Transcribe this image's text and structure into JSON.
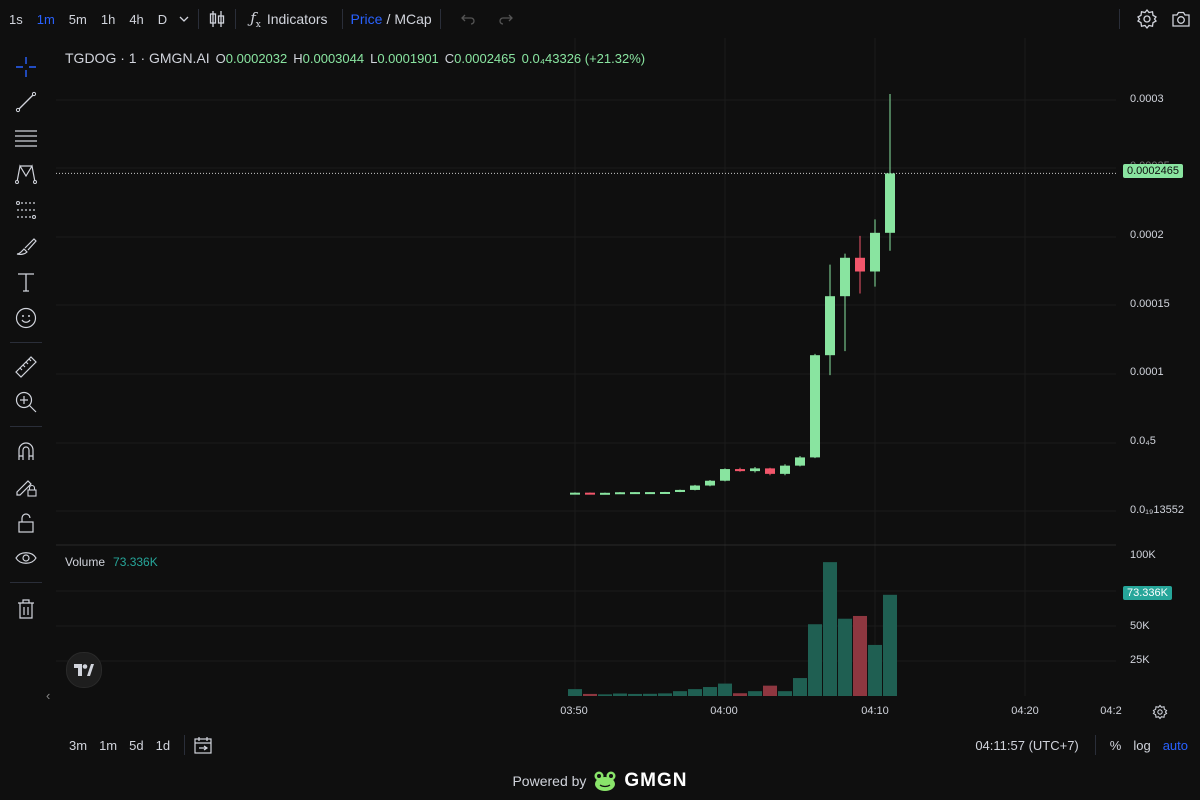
{
  "toolbar": {
    "timeframes": [
      "1s",
      "1m",
      "5m",
      "1h",
      "4h",
      "D"
    ],
    "active_timeframe": "1m",
    "indicators_label": "Indicators",
    "price_label": "Price",
    "slash": "/",
    "mcap_label": "MCap"
  },
  "legend": {
    "symbol": "TGDOG · 1 · GMGN.AI",
    "open_key": "O",
    "open": "0.0002032",
    "high_key": "H",
    "high": "0.0003044",
    "low_key": "L",
    "low": "0.0001901",
    "close_key": "C",
    "close": "0.0002465",
    "change": "0.0₄43326 (+21.32%)"
  },
  "volume_legend": {
    "label": "Volume",
    "value": "73.336K"
  },
  "price_axis": {
    "ticks": [
      "0.0003",
      "0.0002",
      "0.00015",
      "0.0001",
      "0.0₄5",
      "0.0₁₉13552"
    ],
    "partial_tick": "0.00025",
    "current_price_tag": "0.0002465",
    "volume_ticks": [
      "100K",
      "50K",
      "25K"
    ],
    "volume_tag": "73.336K"
  },
  "time_axis": {
    "labels": [
      "03:50",
      "04:00",
      "04:10",
      "04:20",
      "04:2"
    ]
  },
  "bottom": {
    "ranges": [
      "3m",
      "1m",
      "5d",
      "1d"
    ],
    "clock": "04:11:57 (UTC+7)",
    "percent": "%",
    "log": "log",
    "auto": "auto"
  },
  "footer": {
    "powered_by": "Powered by",
    "brand": "GMGN"
  },
  "colors": {
    "up": "#89e4a0",
    "down": "#f2566b",
    "vol_up": "#1f5f52",
    "vol_down": "#8e3740",
    "accent": "#2962ff"
  },
  "chart_data": {
    "type": "candlestick",
    "candles": [
      {
        "t": "03:50",
        "o": 1.36e-05,
        "h": 1.4e-05,
        "l": 1.34e-05,
        "c": 1.38e-05,
        "v": 5000
      },
      {
        "t": "03:51",
        "o": 1.38e-05,
        "h": 1.39e-05,
        "l": 1.36e-05,
        "c": 1.37e-05,
        "v": 1500
      },
      {
        "t": "03:52",
        "o": 1.37e-05,
        "h": 1.38e-05,
        "l": 1.36e-05,
        "c": 1.37e-05,
        "v": 1200
      },
      {
        "t": "03:53",
        "o": 1.37e-05,
        "h": 1.42e-05,
        "l": 1.36e-05,
        "c": 1.41e-05,
        "v": 1800
      },
      {
        "t": "03:54",
        "o": 1.41e-05,
        "h": 1.43e-05,
        "l": 1.4e-05,
        "c": 1.42e-05,
        "v": 1500
      },
      {
        "t": "03:55",
        "o": 1.42e-05,
        "h": 1.43e-05,
        "l": 1.41e-05,
        "c": 1.42e-05,
        "v": 1600
      },
      {
        "t": "03:56",
        "o": 1.42e-05,
        "h": 1.44e-05,
        "l": 1.41e-05,
        "c": 1.43e-05,
        "v": 1900
      },
      {
        "t": "03:57",
        "o": 1.43e-05,
        "h": 1.6e-05,
        "l": 1.42e-05,
        "c": 1.58e-05,
        "v": 3500
      },
      {
        "t": "03:58",
        "o": 1.58e-05,
        "h": 1.95e-05,
        "l": 1.55e-05,
        "c": 1.9e-05,
        "v": 5000
      },
      {
        "t": "03:59",
        "o": 1.9e-05,
        "h": 2.3e-05,
        "l": 1.85e-05,
        "c": 2.25e-05,
        "v": 6500
      },
      {
        "t": "04:00",
        "o": 2.25e-05,
        "h": 3.15e-05,
        "l": 2.2e-05,
        "c": 3.1e-05,
        "v": 9000
      },
      {
        "t": "04:01",
        "o": 3.1e-05,
        "h": 3.2e-05,
        "l": 2.9e-05,
        "c": 2.95e-05,
        "v": 2000
      },
      {
        "t": "04:02",
        "o": 2.95e-05,
        "h": 3.25e-05,
        "l": 2.85e-05,
        "c": 3.15e-05,
        "v": 3500
      },
      {
        "t": "04:03",
        "o": 3.15e-05,
        "h": 3.2e-05,
        "l": 2.65e-05,
        "c": 2.75e-05,
        "v": 7500
      },
      {
        "t": "04:04",
        "o": 2.75e-05,
        "h": 3.45e-05,
        "l": 2.65e-05,
        "c": 3.35e-05,
        "v": 3500
      },
      {
        "t": "04:05",
        "o": 3.35e-05,
        "h": 4.05e-05,
        "l": 3.3e-05,
        "c": 3.95e-05,
        "v": 13000
      },
      {
        "t": "04:06",
        "o": 3.95e-05,
        "h": 0.000115,
        "l": 3.9e-05,
        "c": 0.000114,
        "v": 52000
      },
      {
        "t": "04:07",
        "o": 0.000114,
        "h": 0.00018,
        "l": 9.95e-05,
        "c": 0.000157,
        "v": 97000
      },
      {
        "t": "04:08",
        "o": 0.000157,
        "h": 0.000188,
        "l": 0.000117,
        "c": 0.000185,
        "v": 56000
      },
      {
        "t": "04:09",
        "o": 0.000185,
        "h": 0.000201,
        "l": 0.000159,
        "c": 0.000175,
        "v": 58000
      },
      {
        "t": "04:10",
        "o": 0.000175,
        "h": 0.000213,
        "l": 0.000164,
        "c": 0.0002032,
        "v": 37000
      },
      {
        "t": "04:11",
        "o": 0.0002032,
        "h": 0.0003044,
        "l": 0.0001901,
        "c": 0.0002465,
        "v": 73336
      }
    ],
    "price_range": [
      1.35e-05,
      0.0003
    ],
    "volume_range": [
      0,
      100000
    ],
    "current_price": 0.0002465
  }
}
